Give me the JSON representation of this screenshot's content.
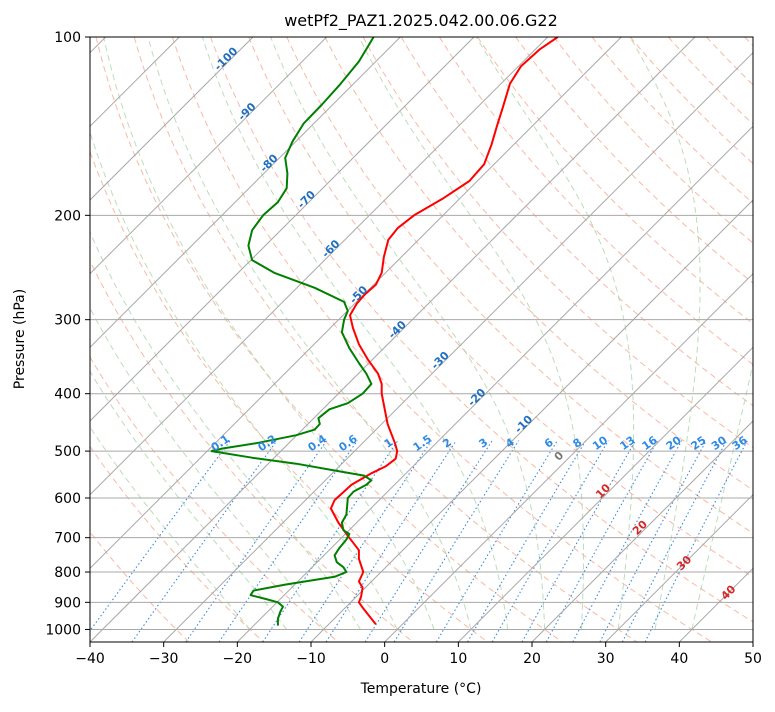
{
  "chart_data": {
    "type": "line",
    "title": "wetPf2_PAZ1.2025.042.00.06.G22",
    "xlabel": "Temperature (°C)",
    "ylabel": "Pressure (hPa)",
    "xlim": [
      -40,
      50
    ],
    "ylim": [
      1050,
      100
    ],
    "y_scale": "log",
    "grid": true,
    "x_ticks": [
      "−40",
      "−30",
      "−20",
      "−10",
      "0",
      "10",
      "20",
      "30",
      "40",
      "50"
    ],
    "x_tick_values": [
      -40,
      -30,
      -20,
      -10,
      0,
      10,
      20,
      30,
      40,
      50
    ],
    "y_ticks": [
      "1000",
      "900",
      "800",
      "700",
      "600",
      "500",
      "400",
      "300",
      "200",
      "100"
    ],
    "y_tick_values": [
      1000,
      900,
      800,
      700,
      600,
      500,
      400,
      300,
      200,
      100
    ],
    "series": [
      {
        "color": "#ff0000",
        "points": [
          [
            -1.2,
            980
          ],
          [
            -2.8,
            925
          ],
          [
            -3.5,
            900
          ],
          [
            -3.2,
            880
          ],
          [
            -3.0,
            850
          ],
          [
            -3.5,
            830
          ],
          [
            -2.9,
            800
          ],
          [
            -3.5,
            760
          ],
          [
            -3.5,
            735
          ],
          [
            -5.0,
            695
          ],
          [
            -6.3,
            660
          ],
          [
            -7.3,
            625
          ],
          [
            -6.8,
            605
          ],
          [
            -4.5,
            570
          ],
          [
            -1.8,
            545
          ],
          [
            0.2,
            530
          ],
          [
            1.5,
            515
          ],
          [
            1.7,
            500
          ],
          [
            1.4,
            485
          ],
          [
            0.4,
            450
          ],
          [
            -0.4,
            400
          ],
          [
            -0.4,
            385
          ],
          [
            -0.9,
            370
          ],
          [
            -2.3,
            350
          ],
          [
            -3.5,
            330
          ],
          [
            -4.3,
            310
          ],
          [
            -4.7,
            295
          ],
          [
            -3.8,
            282
          ],
          [
            -2.7,
            272
          ],
          [
            -1.2,
            262
          ],
          [
            -0.4,
            250
          ],
          [
            -0.1,
            235
          ],
          [
            0.5,
            220
          ],
          [
            1.8,
            210
          ],
          [
            4.0,
            200
          ],
          [
            8.0,
            187
          ],
          [
            11.5,
            175
          ],
          [
            13.5,
            164
          ],
          [
            14.5,
            152
          ],
          [
            15.2,
            142
          ],
          [
            16.0,
            132
          ],
          [
            17.0,
            120
          ],
          [
            18.5,
            112
          ],
          [
            21.0,
            105
          ],
          [
            23.5,
            100
          ]
        ]
      },
      {
        "color": "#008000",
        "points": [
          [
            -14.5,
            985
          ],
          [
            -14.5,
            960
          ],
          [
            -14.2,
            935
          ],
          [
            -13.8,
            915
          ],
          [
            -14.5,
            900
          ],
          [
            -16.2,
            888
          ],
          [
            -18.2,
            875
          ],
          [
            -17.8,
            860
          ],
          [
            -13.5,
            840
          ],
          [
            -6.8,
            815
          ],
          [
            -5.2,
            800
          ],
          [
            -5.6,
            785
          ],
          [
            -6.5,
            770
          ],
          [
            -6.8,
            750
          ],
          [
            -6.2,
            730
          ],
          [
            -5.2,
            705
          ],
          [
            -4.8,
            690
          ],
          [
            -5.6,
            680
          ],
          [
            -5.8,
            660
          ],
          [
            -5.2,
            640
          ],
          [
            -5.1,
            620
          ],
          [
            -5.0,
            600
          ],
          [
            -4.2,
            585
          ],
          [
            -2.5,
            570
          ],
          [
            -1.8,
            560
          ],
          [
            -2.8,
            550
          ],
          [
            -6.5,
            540
          ],
          [
            -12.0,
            525
          ],
          [
            -18.0,
            513
          ],
          [
            -23.5,
            500
          ],
          [
            -22.0,
            495
          ],
          [
            -17.5,
            485
          ],
          [
            -12.0,
            470
          ],
          [
            -9.5,
            460
          ],
          [
            -8.8,
            450
          ],
          [
            -9.0,
            440
          ],
          [
            -7.5,
            425
          ],
          [
            -5.0,
            415
          ],
          [
            -3.0,
            400
          ],
          [
            -1.8,
            385
          ],
          [
            -2.5,
            370
          ],
          [
            -3.5,
            355
          ],
          [
            -4.8,
            335
          ],
          [
            -5.8,
            315
          ],
          [
            -5.5,
            300
          ],
          [
            -5.0,
            290
          ],
          [
            -5.5,
            280
          ],
          [
            -9.5,
            265
          ],
          [
            -15.0,
            250
          ],
          [
            -18.0,
            238
          ],
          [
            -18.5,
            225
          ],
          [
            -18.0,
            212
          ],
          [
            -16.5,
            200
          ],
          [
            -14.5,
            190
          ],
          [
            -13.3,
            180
          ],
          [
            -13.2,
            170
          ],
          [
            -13.5,
            160
          ],
          [
            -12.5,
            150
          ],
          [
            -11.0,
            140
          ],
          [
            -8.5,
            130
          ],
          [
            -6.0,
            120
          ],
          [
            -3.5,
            110
          ],
          [
            -1.5,
            100
          ]
        ]
      }
    ],
    "dry_adiabat_labels": [
      "-100",
      "-90",
      "-80",
      "-70",
      "-60",
      "-50",
      "-40",
      "-30",
      "-20",
      "-10",
      "0",
      "10",
      "20",
      "30",
      "40"
    ],
    "mixing_ratio_labels": [
      "0.1",
      "0.2",
      "0.4",
      "0.6",
      "1",
      "1.5",
      "2",
      "3",
      "4",
      "6",
      "8",
      "10",
      "13",
      "16",
      "20",
      "25",
      "30",
      "36"
    ]
  }
}
